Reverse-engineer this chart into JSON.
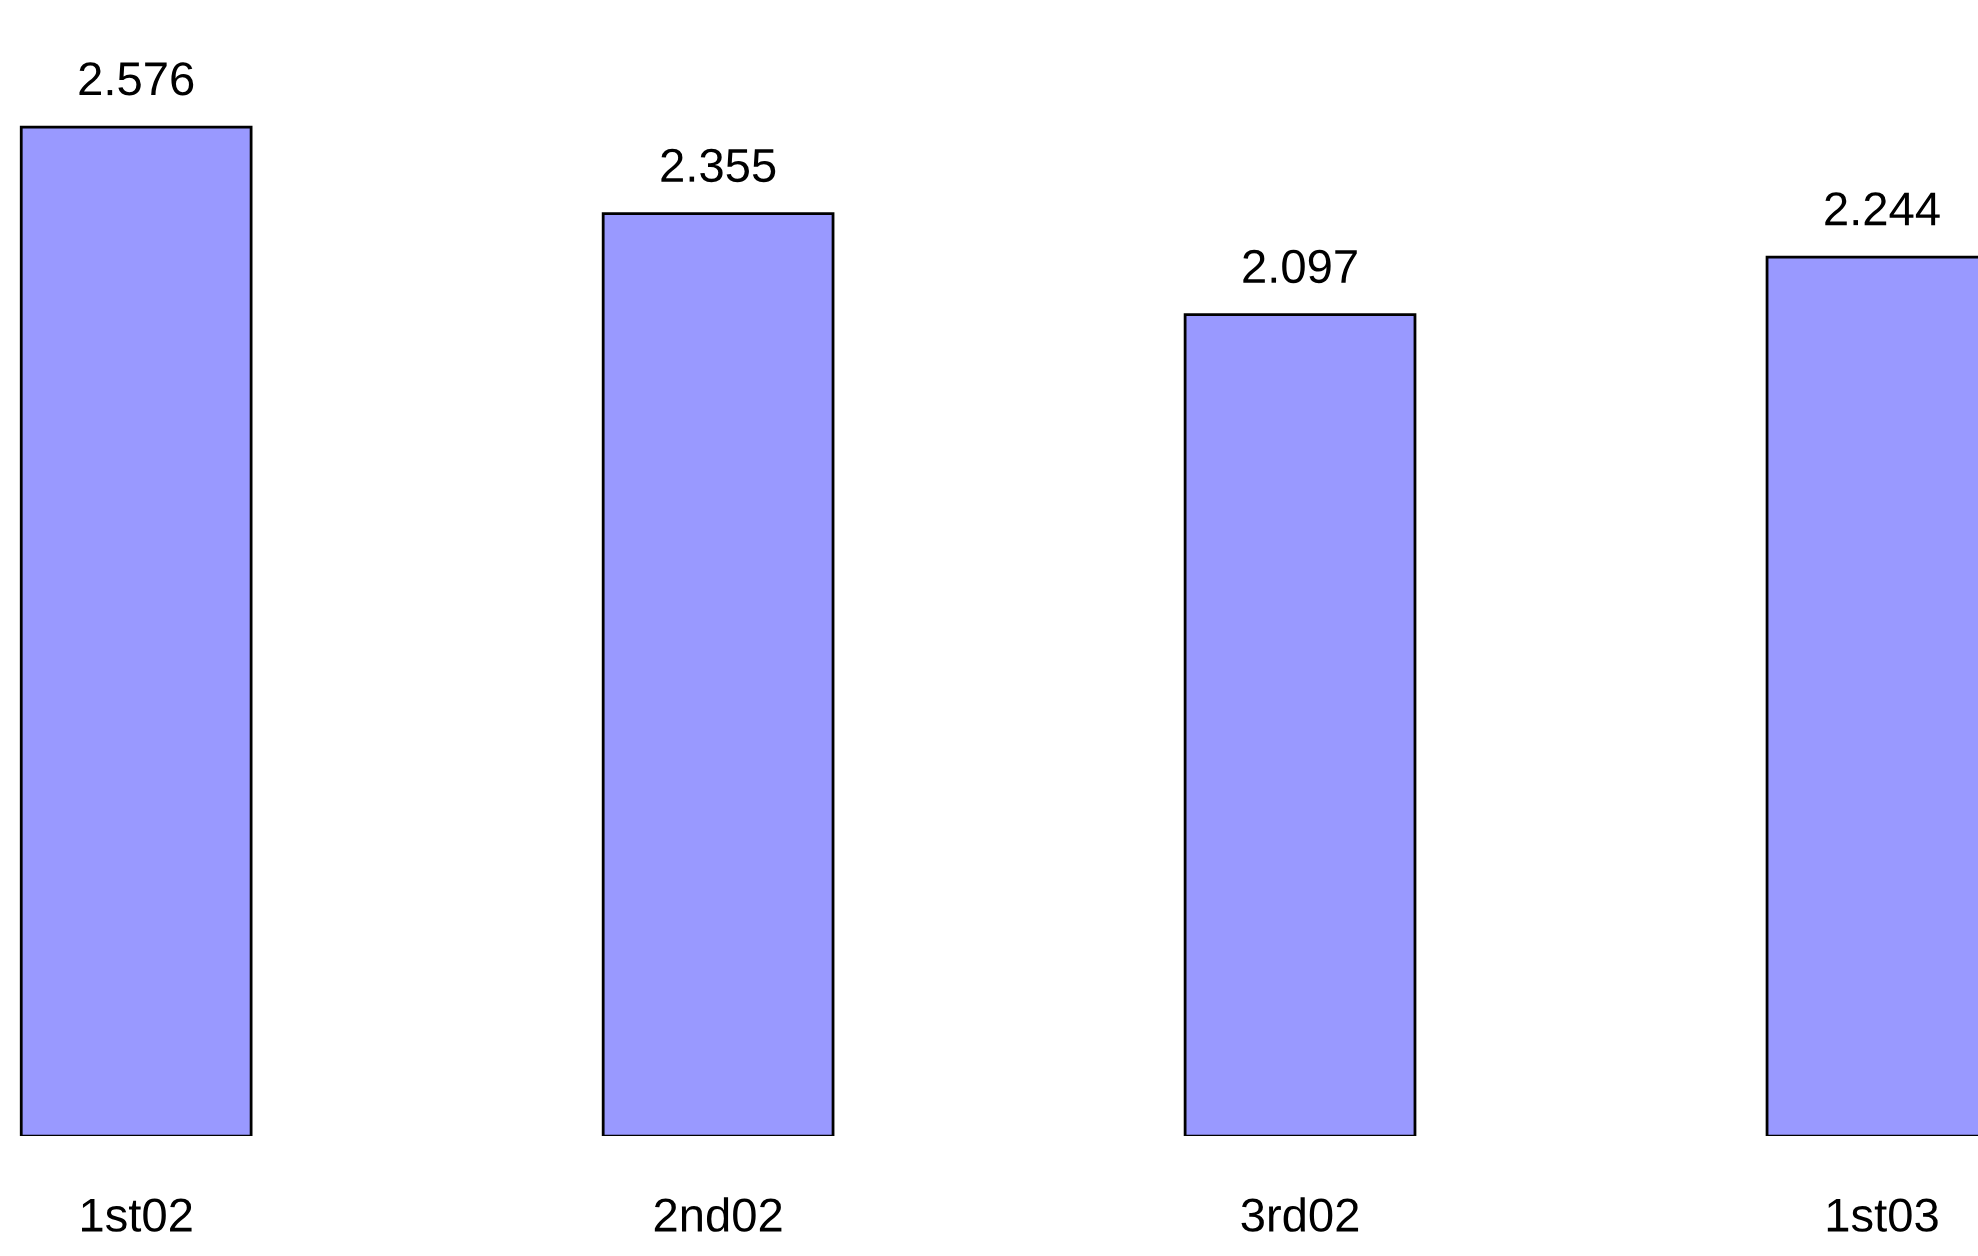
{
  "chart_data": {
    "type": "bar",
    "categories": [
      "1st02",
      "2nd02",
      "3rd02",
      "1st03"
    ],
    "values": [
      2.576,
      2.355,
      2.097,
      2.244
    ],
    "color": "#9999ff",
    "data_labels": true,
    "grid": false,
    "legend": false
  }
}
